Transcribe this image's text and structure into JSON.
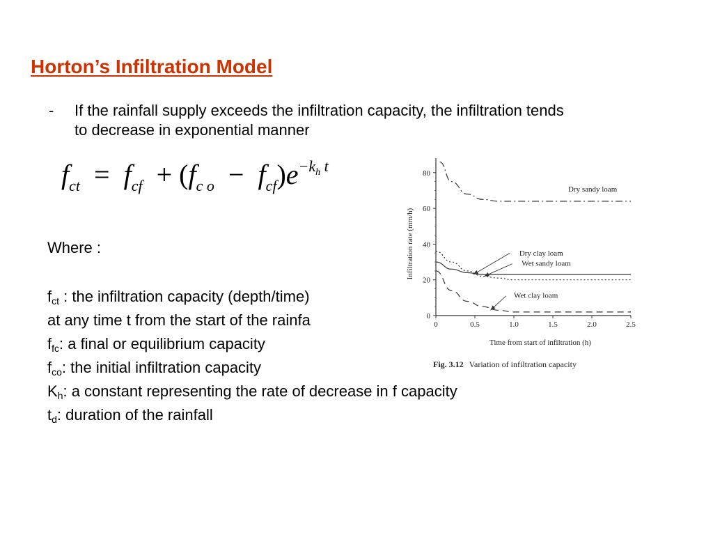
{
  "title": "Horton’s Infiltration Model",
  "bullet": {
    "marker": "-",
    "text": "If the rainfall supply exceeds the infiltration capacity, the infiltration tends to decrease in exponential manner"
  },
  "equation": {
    "lhs_var": "f",
    "lhs_sub": "ct",
    "equals": "=",
    "term1_var": "f",
    "term1_sub": "cf",
    "plus": "+",
    "open_paren": "(",
    "term2_var": "f",
    "term2_sub": "c o",
    "minus": "−",
    "term3_var": "f",
    "term3_sub": "cf",
    "close_paren": ")",
    "exp_base": "e",
    "exp_sign": "−",
    "exp_k": "k",
    "exp_k_sub": "h",
    "exp_t": " t"
  },
  "where_label": "Where :",
  "definitions": {
    "fct": {
      "sym": "f",
      "sub": "ct",
      "text": " : the infiltration capacity (depth/time)"
    },
    "fct_cont": "at any time t from the start of the rainfa",
    "ffc": {
      "sym": "f",
      "sub": "fc",
      "text": ": a final or equilibrium capacity"
    },
    "fco": {
      "sym": "f",
      "sub": "co",
      "text": ": the initial infiltration capacity"
    },
    "kh": {
      "sym": "K",
      "sub": "h",
      "text": ": a constant representing the rate of decrease in f capacity"
    },
    "td": {
      "sym": "t",
      "sub": "d",
      "text": ": duration of the rainfall"
    }
  },
  "figure": {
    "caption_num": "Fig. 3.12",
    "caption_text": "Variation of infiltration capacity"
  },
  "chart_data": {
    "type": "line",
    "title": "",
    "xlabel": "Time from start of infiltration (h)",
    "ylabel": "Infiltration rate (mm/h)",
    "xlim": [
      0,
      2.5
    ],
    "ylim": [
      0,
      85
    ],
    "xticks": [
      0,
      0.5,
      1.0,
      1.5,
      2.0,
      2.5
    ],
    "xtick_labels": [
      "0",
      "0.5",
      "1.0",
      "1.5",
      "2.0",
      "2.5"
    ],
    "yticks": [
      0,
      20,
      40,
      60,
      80
    ],
    "ytick_labels": [
      "0",
      "20",
      "40",
      "60",
      "80"
    ],
    "grid": false,
    "legend": "inline-labels",
    "series": [
      {
        "name": "Dry sandy loam",
        "style": "dash-dot",
        "x": [
          0.05,
          0.2,
          0.4,
          0.6,
          0.8,
          1.0,
          1.5,
          2.0,
          2.5
        ],
        "y": [
          86,
          75,
          68,
          65,
          64,
          64,
          64,
          64,
          64
        ]
      },
      {
        "name": "Dry clay loam",
        "style": "dotted",
        "x": [
          0,
          0.2,
          0.4,
          0.6,
          0.8,
          1.0,
          1.5,
          2.0,
          2.5
        ],
        "y": [
          36,
          30,
          25,
          22,
          21,
          20,
          20,
          20,
          20
        ]
      },
      {
        "name": "Wet sandy loam",
        "style": "solid",
        "x": [
          0,
          0.2,
          0.4,
          0.6,
          0.8,
          1.0,
          1.5,
          2.0,
          2.5
        ],
        "y": [
          30,
          26,
          24,
          23,
          23,
          23,
          23,
          23,
          23
        ]
      },
      {
        "name": "Wet clay loam",
        "style": "dashed",
        "x": [
          0,
          0.2,
          0.4,
          0.6,
          0.8,
          1.0,
          1.5,
          2.0,
          2.5
        ],
        "y": [
          25,
          14,
          8,
          5,
          3,
          2,
          2,
          2,
          2
        ]
      }
    ]
  }
}
